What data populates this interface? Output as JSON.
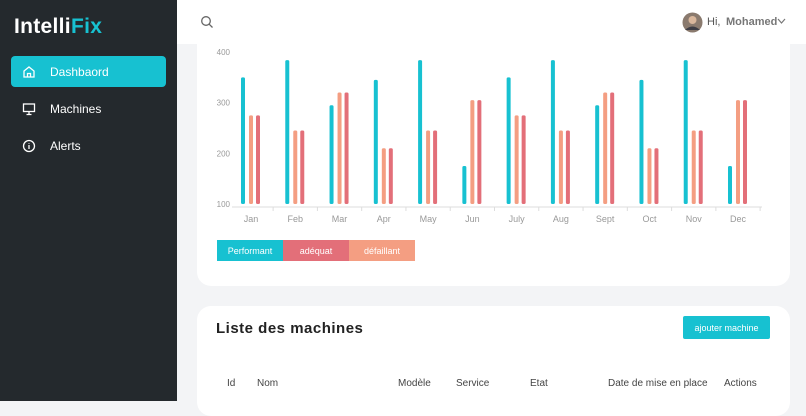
{
  "sidebar": {
    "logo": [
      "Intelli",
      "Fix"
    ],
    "nav": [
      "Dashbaord",
      "Machines",
      "Alerts"
    ]
  },
  "header": {
    "greeting": "Hi,",
    "user": "Mohamed"
  },
  "chart_data": {
    "type": "bar",
    "categories": [
      "Jan",
      "Feb",
      "Mar",
      "Apr",
      "May",
      "Jun",
      "July",
      "Aug",
      "Sept",
      "Oct",
      "Nov",
      "Dec"
    ],
    "series": [
      {
        "name": "Performant",
        "color": "#17c1d1",
        "values": [
          350,
          384,
          295,
          345,
          384,
          175,
          350,
          384,
          295,
          345,
          384,
          175
        ]
      },
      {
        "name": "adéquat",
        "color": "#e36f79",
        "values": [
          275,
          245,
          320,
          210,
          245,
          305,
          275,
          245,
          320,
          210,
          245,
          305
        ]
      },
      {
        "name": "défaillant",
        "color": "#f49e82",
        "values": [
          275,
          245,
          320,
          210,
          245,
          305,
          275,
          245,
          320,
          210,
          245,
          305
        ]
      }
    ],
    "ylim": [
      100,
      400
    ],
    "yticks": [
      100,
      200,
      300,
      400
    ]
  },
  "machines": {
    "title": "Liste des machines",
    "button": "ajouter machine",
    "columns": [
      "Id",
      "Nom",
      "Modèle",
      "Service",
      "Etat",
      "Date de mise en place",
      "Actions"
    ]
  }
}
